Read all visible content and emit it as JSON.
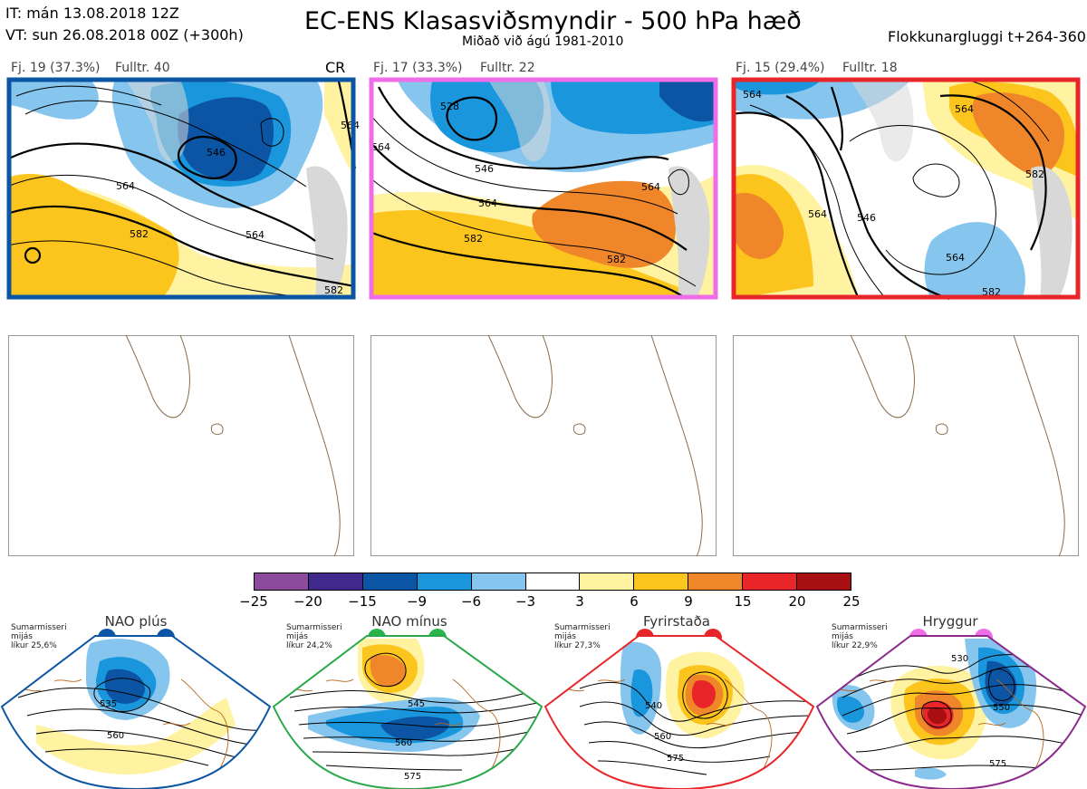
{
  "header": {
    "it_line": "IT: mán 13.08.2018 12Z",
    "vt_line": "VT: sun 26.08.2018 00Z  (+300h)",
    "title": "EC-ENS Klasasviðsmyndir - 500 hPa hæð",
    "subtitle": "Miðað við ágú 1981-2010",
    "window": "Flokkunargluggi t+264-360"
  },
  "clusters": [
    {
      "label": "Fj. 19 (37.3%)",
      "fulltr": "Fulltr. 40",
      "tag": "CR",
      "border_color": "#0b55a4",
      "contours": [
        "546",
        "564",
        "582",
        "564",
        "564",
        "582"
      ]
    },
    {
      "label": "Fj. 17 (33.3%)",
      "fulltr": "Fulltr. 22",
      "tag": "",
      "border_color": "#ee6ee8",
      "contours": [
        "528",
        "546",
        "564",
        "582",
        "564",
        "582",
        "564"
      ]
    },
    {
      "label": "Fj. 15 (29.4%)",
      "fulltr": "Fulltr. 18",
      "tag": "",
      "border_color": "#e8262a",
      "contours": [
        "564",
        "564",
        "546",
        "564",
        "582",
        "582",
        "564"
      ]
    }
  ],
  "legend": {
    "ticks": [
      "−25",
      "−20",
      "−15",
      "−9",
      "−6",
      "−3",
      "3",
      "6",
      "9",
      "15",
      "20",
      "25"
    ],
    "colors": [
      "#8b4a9c",
      "#3f2a8c",
      "#0b55a4",
      "#1a96dc",
      "#86c6ee",
      "#ffffff",
      "#fff2a0",
      "#fcc51e",
      "#f0862a",
      "#e8262a",
      "#a80f12"
    ]
  },
  "regimes": [
    {
      "name": "NAO plús",
      "note": [
        "Sumarmisseri",
        "mijás",
        "líkur 25,6%"
      ],
      "color": "#0b55a4",
      "dot_color": "#0b55a4",
      "contours": [
        "535",
        "560"
      ]
    },
    {
      "name": "NAO mínus",
      "note": [
        "Sumarmisseri",
        "mijás",
        "líkur 24,2%"
      ],
      "color": "#2aa84a",
      "dot_color": "#2ab54a",
      "contours": [
        "545",
        "560",
        "575"
      ]
    },
    {
      "name": "Fyrirstaða",
      "note": [
        "Sumarmisseri",
        "mijás",
        "líkur 27,3%"
      ],
      "color": "#e8262a",
      "dot_color": "#e8262a",
      "contours": [
        "540",
        "560",
        "575"
      ]
    },
    {
      "name": "Hryggur",
      "note": [
        "Sumarmisseri",
        "mijás",
        "líkur 22,9%"
      ],
      "color": "#8b2a8c",
      "dot_color": "#ee6ee8",
      "contours": [
        "530",
        "550",
        "575"
      ]
    }
  ]
}
